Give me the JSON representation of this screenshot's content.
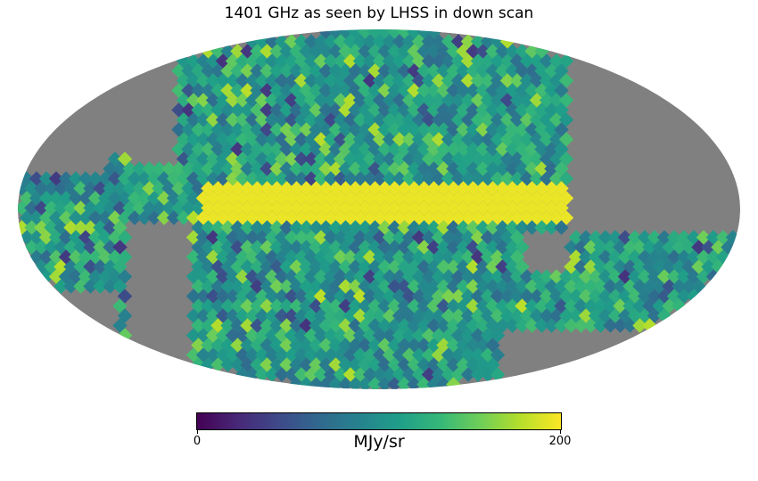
{
  "chart_data": {
    "type": "heatmap",
    "title": "1401 GHz as seen by LHSS in down scan",
    "projection": "mollweide",
    "colormap": "viridis",
    "colorbar": {
      "min": 0,
      "max": 200,
      "tick_labels": [
        "0",
        "200"
      ],
      "unit_label": "MJy/sr"
    },
    "no_data_color": "#808080",
    "background_color": "#ffffff"
  }
}
